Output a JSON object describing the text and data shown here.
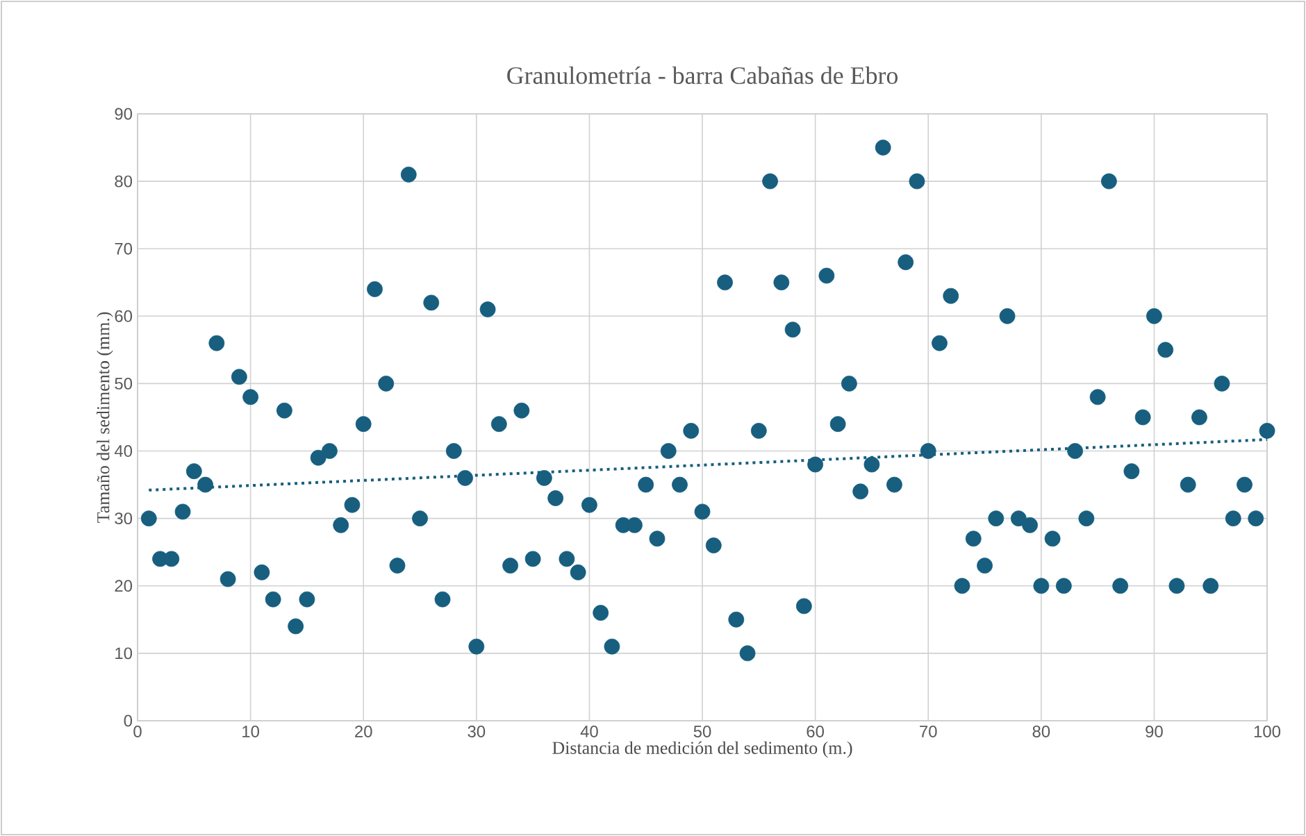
{
  "chart_data": {
    "type": "scatter",
    "title": "Granulometría - barra Cabañas de Ebro",
    "xlabel": "Distancia de medición del sedimento (m.)",
    "ylabel": "Tamaño del sedimento (mm.)",
    "xlim": [
      0,
      100
    ],
    "xticks": [
      0,
      10,
      20,
      30,
      40,
      50,
      60,
      70,
      80,
      90,
      100
    ],
    "ylim": [
      0,
      90
    ],
    "yticks": [
      0,
      10,
      20,
      30,
      40,
      50,
      60,
      70,
      80,
      90
    ],
    "grid": true,
    "marker": "circle",
    "series": [
      {
        "color": "#175e7f",
        "x": [
          1,
          2,
          3,
          4,
          5,
          6,
          7,
          8,
          9,
          10,
          11,
          12,
          13,
          14,
          15,
          16,
          17,
          18,
          19,
          20,
          21,
          22,
          23,
          24,
          25,
          26,
          27,
          28,
          29,
          30,
          31,
          32,
          33,
          34,
          35,
          36,
          37,
          38,
          39,
          40,
          41,
          42,
          43,
          44,
          45,
          46,
          47,
          48,
          49,
          50,
          51,
          52,
          53,
          54,
          55,
          56,
          57,
          58,
          59,
          60,
          61,
          62,
          63,
          64,
          65,
          66,
          67,
          68,
          69,
          70,
          71,
          72,
          73,
          74,
          75,
          76,
          77,
          78,
          79,
          80,
          81,
          82,
          83,
          84,
          85,
          86,
          87,
          88,
          89,
          90,
          91,
          92,
          93,
          94,
          95,
          96,
          97,
          98,
          99,
          100
        ],
        "values": [
          30,
          24,
          24,
          31,
          37,
          35,
          56,
          21,
          51,
          48,
          22,
          18,
          46,
          14,
          18,
          39,
          40,
          29,
          32,
          44,
          64,
          50,
          23,
          81,
          30,
          62,
          18,
          40,
          36,
          11,
          61,
          44,
          23,
          46,
          24,
          36,
          33,
          24,
          22,
          32,
          16,
          11,
          29,
          29,
          35,
          27,
          40,
          35,
          43,
          31,
          26,
          65,
          15,
          10,
          43,
          80,
          65,
          58,
          17,
          38,
          66,
          44,
          50,
          34,
          38,
          85,
          35,
          68,
          80,
          40,
          56,
          63,
          20,
          27,
          23,
          30,
          60,
          30,
          29,
          20,
          27,
          20,
          40,
          30,
          48,
          80,
          20,
          37,
          45,
          60,
          55,
          20,
          35,
          45,
          20,
          50,
          30,
          35,
          30,
          43
        ]
      },
      {
        "type": "line",
        "color": "#175e7f",
        "marker": "none",
        "line_style": "dotted",
        "x": [
          1,
          100
        ],
        "values": [
          34.2,
          41.7
        ]
      }
    ]
  }
}
